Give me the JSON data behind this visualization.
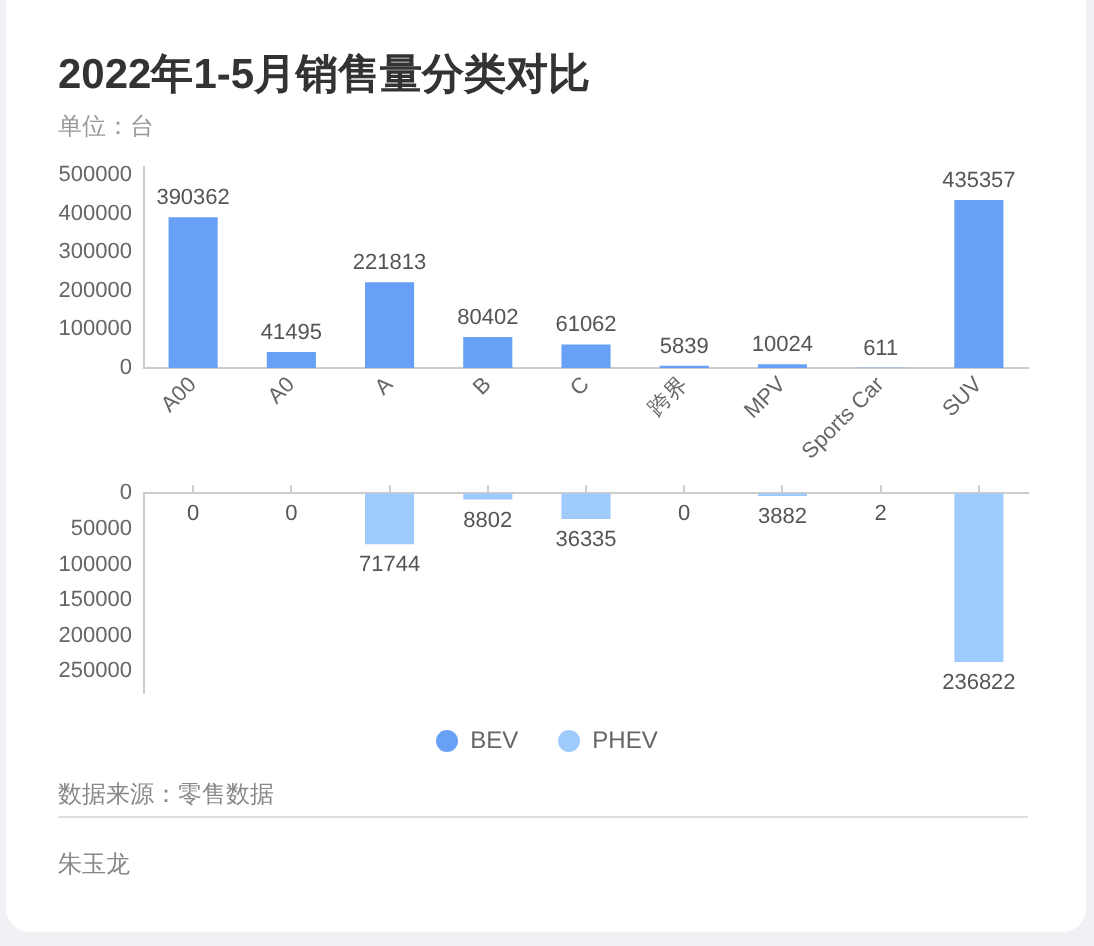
{
  "chart_data": [
    {
      "type": "bar",
      "title": "2022年1-5月销售量分类对比",
      "subtitle": "单位：台",
      "categories": [
        "A00",
        "A0",
        "A",
        "B",
        "C",
        "跨界",
        "MPV",
        "Sports Car",
        "SUV"
      ],
      "series": [
        {
          "name": "BEV",
          "color": "#68a0f5",
          "values": [
            390362,
            41495,
            221813,
            80402,
            61062,
            5839,
            10024,
            611,
            435357
          ]
        }
      ],
      "ylim": [
        0,
        520000
      ],
      "yticks": [
        0,
        100000,
        200000,
        300000,
        400000,
        500000
      ],
      "grid": false,
      "legend": "bottom",
      "data_labels": true
    },
    {
      "type": "bar",
      "categories": [
        null,
        null,
        null,
        null,
        null,
        null,
        null,
        null,
        null
      ],
      "series": [
        {
          "name": "PHEV",
          "color": "#9fcafc",
          "values": [
            0,
            0,
            71744,
            8802,
            36335,
            0,
            3882,
            2,
            236822
          ]
        }
      ],
      "ylim": [
        280000,
        0
      ],
      "yticks": [
        0,
        50000,
        100000,
        150000,
        200000,
        250000
      ],
      "tick_labels": "y",
      "grid": false,
      "legend": "bottom",
      "data_labels": true,
      "annotations": [
        "数据来源：零售数据",
        "朱玉龙"
      ]
    }
  ]
}
